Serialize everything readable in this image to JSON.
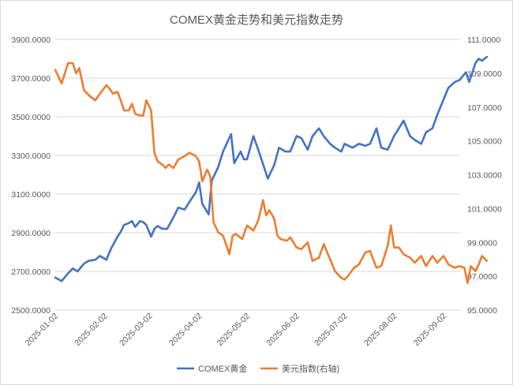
{
  "chart_data": {
    "type": "line",
    "title": "COMEX黄金走势和美元指数走势",
    "x_ticks": [
      "2025-01-02",
      "2025-02-02",
      "2025-03-02",
      "2025-04-02",
      "2025-05-02",
      "2025-06-02",
      "2025-07-02",
      "2025-08-02",
      "2025-09-02"
    ],
    "y_left": {
      "ylim": [
        2500,
        3900
      ],
      "ticks": [
        "2500.0000",
        "2700.0000",
        "2900.0000",
        "3100.0000",
        "3300.0000",
        "3500.0000",
        "3700.0000",
        "3900.0000"
      ]
    },
    "y_right": {
      "ylim": [
        95,
        111
      ],
      "ticks": [
        "95.0000",
        "97.0000",
        "99.0000",
        "101.0000",
        "103.0000",
        "105.0000",
        "107.0000",
        "109.0000",
        "111.0000"
      ]
    },
    "grid": true,
    "legend": "bottom",
    "series": [
      {
        "name": "COMEX黄金",
        "axis": "left",
        "color": "#4472c4",
        "points": [
          [
            "2025-01-02",
            2668
          ],
          [
            "2025-01-06",
            2650
          ],
          [
            "2025-01-10",
            2690
          ],
          [
            "2025-01-13",
            2715
          ],
          [
            "2025-01-16",
            2700
          ],
          [
            "2025-01-20",
            2740
          ],
          [
            "2025-01-23",
            2755
          ],
          [
            "2025-01-27",
            2760
          ],
          [
            "2025-01-30",
            2780
          ],
          [
            "2025-02-03",
            2760
          ],
          [
            "2025-02-06",
            2820
          ],
          [
            "2025-02-10",
            2880
          ],
          [
            "2025-02-12",
            2905
          ],
          [
            "2025-02-14",
            2940
          ],
          [
            "2025-02-17",
            2950
          ],
          [
            "2025-02-19",
            2960
          ],
          [
            "2025-02-21",
            2930
          ],
          [
            "2025-02-24",
            2960
          ],
          [
            "2025-02-26",
            2955
          ],
          [
            "2025-02-28",
            2940
          ],
          [
            "2025-03-03",
            2880
          ],
          [
            "2025-03-05",
            2920
          ],
          [
            "2025-03-07",
            2935
          ],
          [
            "2025-03-10",
            2920
          ],
          [
            "2025-03-13",
            2920
          ],
          [
            "2025-03-17",
            2980
          ],
          [
            "2025-03-20",
            3030
          ],
          [
            "2025-03-24",
            3020
          ],
          [
            "2025-03-27",
            3060
          ],
          [
            "2025-03-31",
            3110
          ],
          [
            "2025-04-02",
            3160
          ],
          [
            "2025-04-04",
            3050
          ],
          [
            "2025-04-08",
            2995
          ],
          [
            "2025-04-10",
            3170
          ],
          [
            "2025-04-14",
            3240
          ],
          [
            "2025-04-17",
            3320
          ],
          [
            "2025-04-22",
            3410
          ],
          [
            "2025-04-24",
            3260
          ],
          [
            "2025-04-28",
            3320
          ],
          [
            "2025-04-30",
            3280
          ],
          [
            "2025-05-02",
            3280
          ],
          [
            "2025-05-06",
            3400
          ],
          [
            "2025-05-09",
            3330
          ],
          [
            "2025-05-13",
            3230
          ],
          [
            "2025-05-15",
            3180
          ],
          [
            "2025-05-19",
            3250
          ],
          [
            "2025-05-22",
            3340
          ],
          [
            "2025-05-26",
            3320
          ],
          [
            "2025-05-29",
            3320
          ],
          [
            "2025-06-02",
            3400
          ],
          [
            "2025-06-05",
            3390
          ],
          [
            "2025-06-09",
            3330
          ],
          [
            "2025-06-12",
            3400
          ],
          [
            "2025-06-16",
            3440
          ],
          [
            "2025-06-19",
            3400
          ],
          [
            "2025-06-23",
            3360
          ],
          [
            "2025-06-26",
            3340
          ],
          [
            "2025-06-30",
            3320
          ],
          [
            "2025-07-02",
            3360
          ],
          [
            "2025-07-07",
            3340
          ],
          [
            "2025-07-11",
            3360
          ],
          [
            "2025-07-15",
            3350
          ],
          [
            "2025-07-18",
            3360
          ],
          [
            "2025-07-22",
            3440
          ],
          [
            "2025-07-25",
            3340
          ],
          [
            "2025-07-29",
            3330
          ],
          [
            "2025-08-02",
            3400
          ],
          [
            "2025-08-05",
            3440
          ],
          [
            "2025-08-08",
            3480
          ],
          [
            "2025-08-12",
            3400
          ],
          [
            "2025-08-15",
            3380
          ],
          [
            "2025-08-19",
            3360
          ],
          [
            "2025-08-22",
            3420
          ],
          [
            "2025-08-26",
            3440
          ],
          [
            "2025-08-29",
            3510
          ],
          [
            "2025-09-02",
            3590
          ],
          [
            "2025-09-05",
            3650
          ],
          [
            "2025-09-09",
            3680
          ],
          [
            "2025-09-12",
            3690
          ],
          [
            "2025-09-16",
            3730
          ],
          [
            "2025-09-18",
            3680
          ],
          [
            "2025-09-22",
            3780
          ],
          [
            "2025-09-24",
            3800
          ],
          [
            "2025-09-26",
            3790
          ],
          [
            "2025-09-29",
            3810
          ]
        ]
      },
      {
        "name": "美元指数(右轴)",
        "axis": "right",
        "color": "#ed7d31",
        "points": [
          [
            "2025-01-02",
            109.2
          ],
          [
            "2025-01-04",
            108.8
          ],
          [
            "2025-01-06",
            108.4
          ],
          [
            "2025-01-08",
            109.0
          ],
          [
            "2025-01-10",
            109.6
          ],
          [
            "2025-01-13",
            109.6
          ],
          [
            "2025-01-15",
            109.0
          ],
          [
            "2025-01-17",
            109.3
          ],
          [
            "2025-01-20",
            108.0
          ],
          [
            "2025-01-23",
            107.7
          ],
          [
            "2025-01-27",
            107.4
          ],
          [
            "2025-01-30",
            107.8
          ],
          [
            "2025-02-03",
            108.3
          ],
          [
            "2025-02-05",
            108.1
          ],
          [
            "2025-02-07",
            107.8
          ],
          [
            "2025-02-10",
            107.9
          ],
          [
            "2025-02-12",
            107.4
          ],
          [
            "2025-02-14",
            106.8
          ],
          [
            "2025-02-17",
            106.8
          ],
          [
            "2025-02-19",
            107.2
          ],
          [
            "2025-02-21",
            106.6
          ],
          [
            "2025-02-24",
            106.5
          ],
          [
            "2025-02-26",
            106.5
          ],
          [
            "2025-02-28",
            107.4
          ],
          [
            "2025-03-03",
            106.8
          ],
          [
            "2025-03-05",
            104.3
          ],
          [
            "2025-03-07",
            103.8
          ],
          [
            "2025-03-10",
            103.6
          ],
          [
            "2025-03-12",
            103.4
          ],
          [
            "2025-03-14",
            103.6
          ],
          [
            "2025-03-17",
            103.4
          ],
          [
            "2025-03-20",
            103.9
          ],
          [
            "2025-03-24",
            104.1
          ],
          [
            "2025-03-27",
            104.3
          ],
          [
            "2025-03-31",
            104.1
          ],
          [
            "2025-04-02",
            103.8
          ],
          [
            "2025-04-04",
            102.6
          ],
          [
            "2025-04-07",
            103.3
          ],
          [
            "2025-04-09",
            102.9
          ],
          [
            "2025-04-11",
            100.2
          ],
          [
            "2025-04-14",
            99.6
          ],
          [
            "2025-04-17",
            99.4
          ],
          [
            "2025-04-21",
            98.3
          ],
          [
            "2025-04-23",
            99.4
          ],
          [
            "2025-04-25",
            99.5
          ],
          [
            "2025-04-29",
            99.2
          ],
          [
            "2025-05-02",
            100.0
          ],
          [
            "2025-05-06",
            99.7
          ],
          [
            "2025-05-09",
            100.3
          ],
          [
            "2025-05-12",
            101.5
          ],
          [
            "2025-05-14",
            100.6
          ],
          [
            "2025-05-16",
            100.9
          ],
          [
            "2025-05-19",
            100.4
          ],
          [
            "2025-05-21",
            99.4
          ],
          [
            "2025-05-23",
            99.2
          ],
          [
            "2025-05-27",
            99.1
          ],
          [
            "2025-05-29",
            99.3
          ],
          [
            "2025-06-02",
            98.7
          ],
          [
            "2025-06-05",
            98.6
          ],
          [
            "2025-06-09",
            99.0
          ],
          [
            "2025-06-12",
            97.9
          ],
          [
            "2025-06-16",
            98.1
          ],
          [
            "2025-06-19",
            98.9
          ],
          [
            "2025-06-23",
            98.0
          ],
          [
            "2025-06-26",
            97.3
          ],
          [
            "2025-06-30",
            96.9
          ],
          [
            "2025-07-02",
            96.8
          ],
          [
            "2025-07-04",
            97.0
          ],
          [
            "2025-07-08",
            97.5
          ],
          [
            "2025-07-11",
            97.7
          ],
          [
            "2025-07-15",
            98.4
          ],
          [
            "2025-07-18",
            98.5
          ],
          [
            "2025-07-22",
            97.5
          ],
          [
            "2025-07-25",
            97.6
          ],
          [
            "2025-07-29",
            98.8
          ],
          [
            "2025-07-31",
            100.0
          ],
          [
            "2025-08-02",
            98.7
          ],
          [
            "2025-08-05",
            98.7
          ],
          [
            "2025-08-08",
            98.3
          ],
          [
            "2025-08-12",
            98.1
          ],
          [
            "2025-08-15",
            97.8
          ],
          [
            "2025-08-19",
            98.2
          ],
          [
            "2025-08-22",
            97.6
          ],
          [
            "2025-08-26",
            98.2
          ],
          [
            "2025-08-29",
            97.8
          ],
          [
            "2025-09-02",
            98.2
          ],
          [
            "2025-09-05",
            97.7
          ],
          [
            "2025-09-09",
            97.5
          ],
          [
            "2025-09-12",
            97.6
          ],
          [
            "2025-09-15",
            97.5
          ],
          [
            "2025-09-17",
            96.6
          ],
          [
            "2025-09-19",
            97.6
          ],
          [
            "2025-09-22",
            97.3
          ],
          [
            "2025-09-24",
            97.7
          ],
          [
            "2025-09-26",
            98.2
          ],
          [
            "2025-09-29",
            97.9
          ]
        ]
      }
    ]
  }
}
